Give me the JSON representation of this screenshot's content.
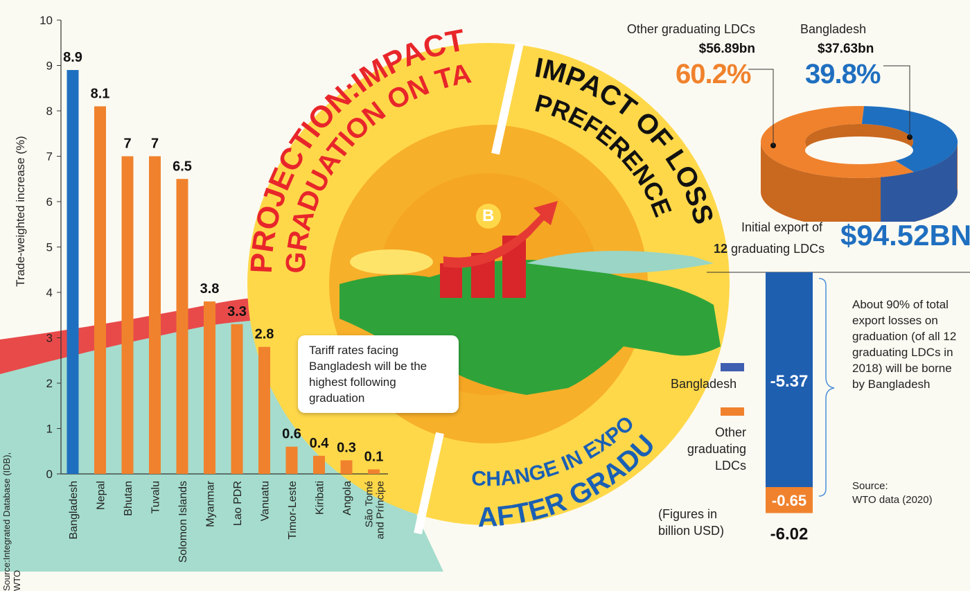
{
  "colors": {
    "bangladesh_blue": "#1f6fc0",
    "other_orange": "#f0822d",
    "ring_yellow": "#ffd84a",
    "title_red": "#e8262a",
    "title_blue": "#1a5fb4"
  },
  "ring": {
    "title_left": "PROJECTION:IMPACT OF LDC GRADUATION ON TARIFFS",
    "title_right": "IMPACT OF LOSS OF PREFERENCES",
    "title_bottom_1": "CHANGE IN EXPORT",
    "title_bottom_2": "AFTER GRADUATION",
    "logo": "B"
  },
  "callout": "Tariff rates facing Bangladesh will be the highest following graduation",
  "bar_chart_source": "Source:Integrated Database (IDB), WTO",
  "pie": {
    "other_label": "Other graduating LDCs",
    "other_value": "$56.89bn",
    "other_pct": "60.2%",
    "bd_label": "Bangladesh",
    "bd_value": "$37.63bn",
    "bd_pct": "39.8%",
    "initial_label_1": "Initial export of",
    "initial_count": "12",
    "initial_label_2": "graduating LDCs",
    "initial_total": "$94.52BN"
  },
  "export_change": {
    "legend_bd": "Bangladesh",
    "legend_other_1": "Other",
    "legend_other_2": "graduating",
    "legend_other_3": "LDCs",
    "figures_note_1": "(Figures in",
    "figures_note_2": "billion USD)",
    "note": "About 90% of total export losses on graduation (of all 12 graduating LDCs in 2018) will be borne by Bangladesh",
    "source_1": "Source:",
    "source_2": "WTO data (2020)"
  },
  "chart_data": [
    {
      "type": "bar",
      "ylabel": "Trade-weighted increase (%)",
      "ylim": [
        0,
        10
      ],
      "yticks": [
        0,
        1,
        2,
        3,
        4,
        5,
        6,
        7,
        8,
        9,
        10
      ],
      "categories": [
        "Bangladesh",
        "Nepal",
        "Bhutan",
        "Tuvalu",
        "Solomon Islands",
        "Myanmar",
        "Lao PDR",
        "Vanuatu",
        "Timor-Leste",
        "Kiribati",
        "Angola",
        "São Tomé and Príncipe"
      ],
      "values": [
        8.9,
        8.1,
        7,
        7,
        6.5,
        3.8,
        3.3,
        2.8,
        0.6,
        0.4,
        0.3,
        0.1
      ],
      "value_labels": [
        "8.9",
        "8.1",
        "7",
        "7",
        "6.5",
        "3.8",
        "3.3",
        "2.8",
        "0.6",
        "0.4",
        "0.3",
        "0.1"
      ],
      "highlight": "Bangladesh"
    },
    {
      "type": "pie",
      "labels": [
        "Other graduating LDCs",
        "Bangladesh"
      ],
      "values": [
        56.89,
        37.63
      ],
      "percent": [
        60.2,
        39.8
      ]
    },
    {
      "type": "bar",
      "stacked": true,
      "series": [
        {
          "name": "Bangladesh",
          "values": [
            -5.37
          ]
        },
        {
          "name": "Other graduating LDCs",
          "values": [
            -0.65
          ]
        }
      ],
      "value_labels": [
        "-5.37",
        "-0.65"
      ],
      "total": -6.02,
      "total_label": "-6.02"
    }
  ]
}
